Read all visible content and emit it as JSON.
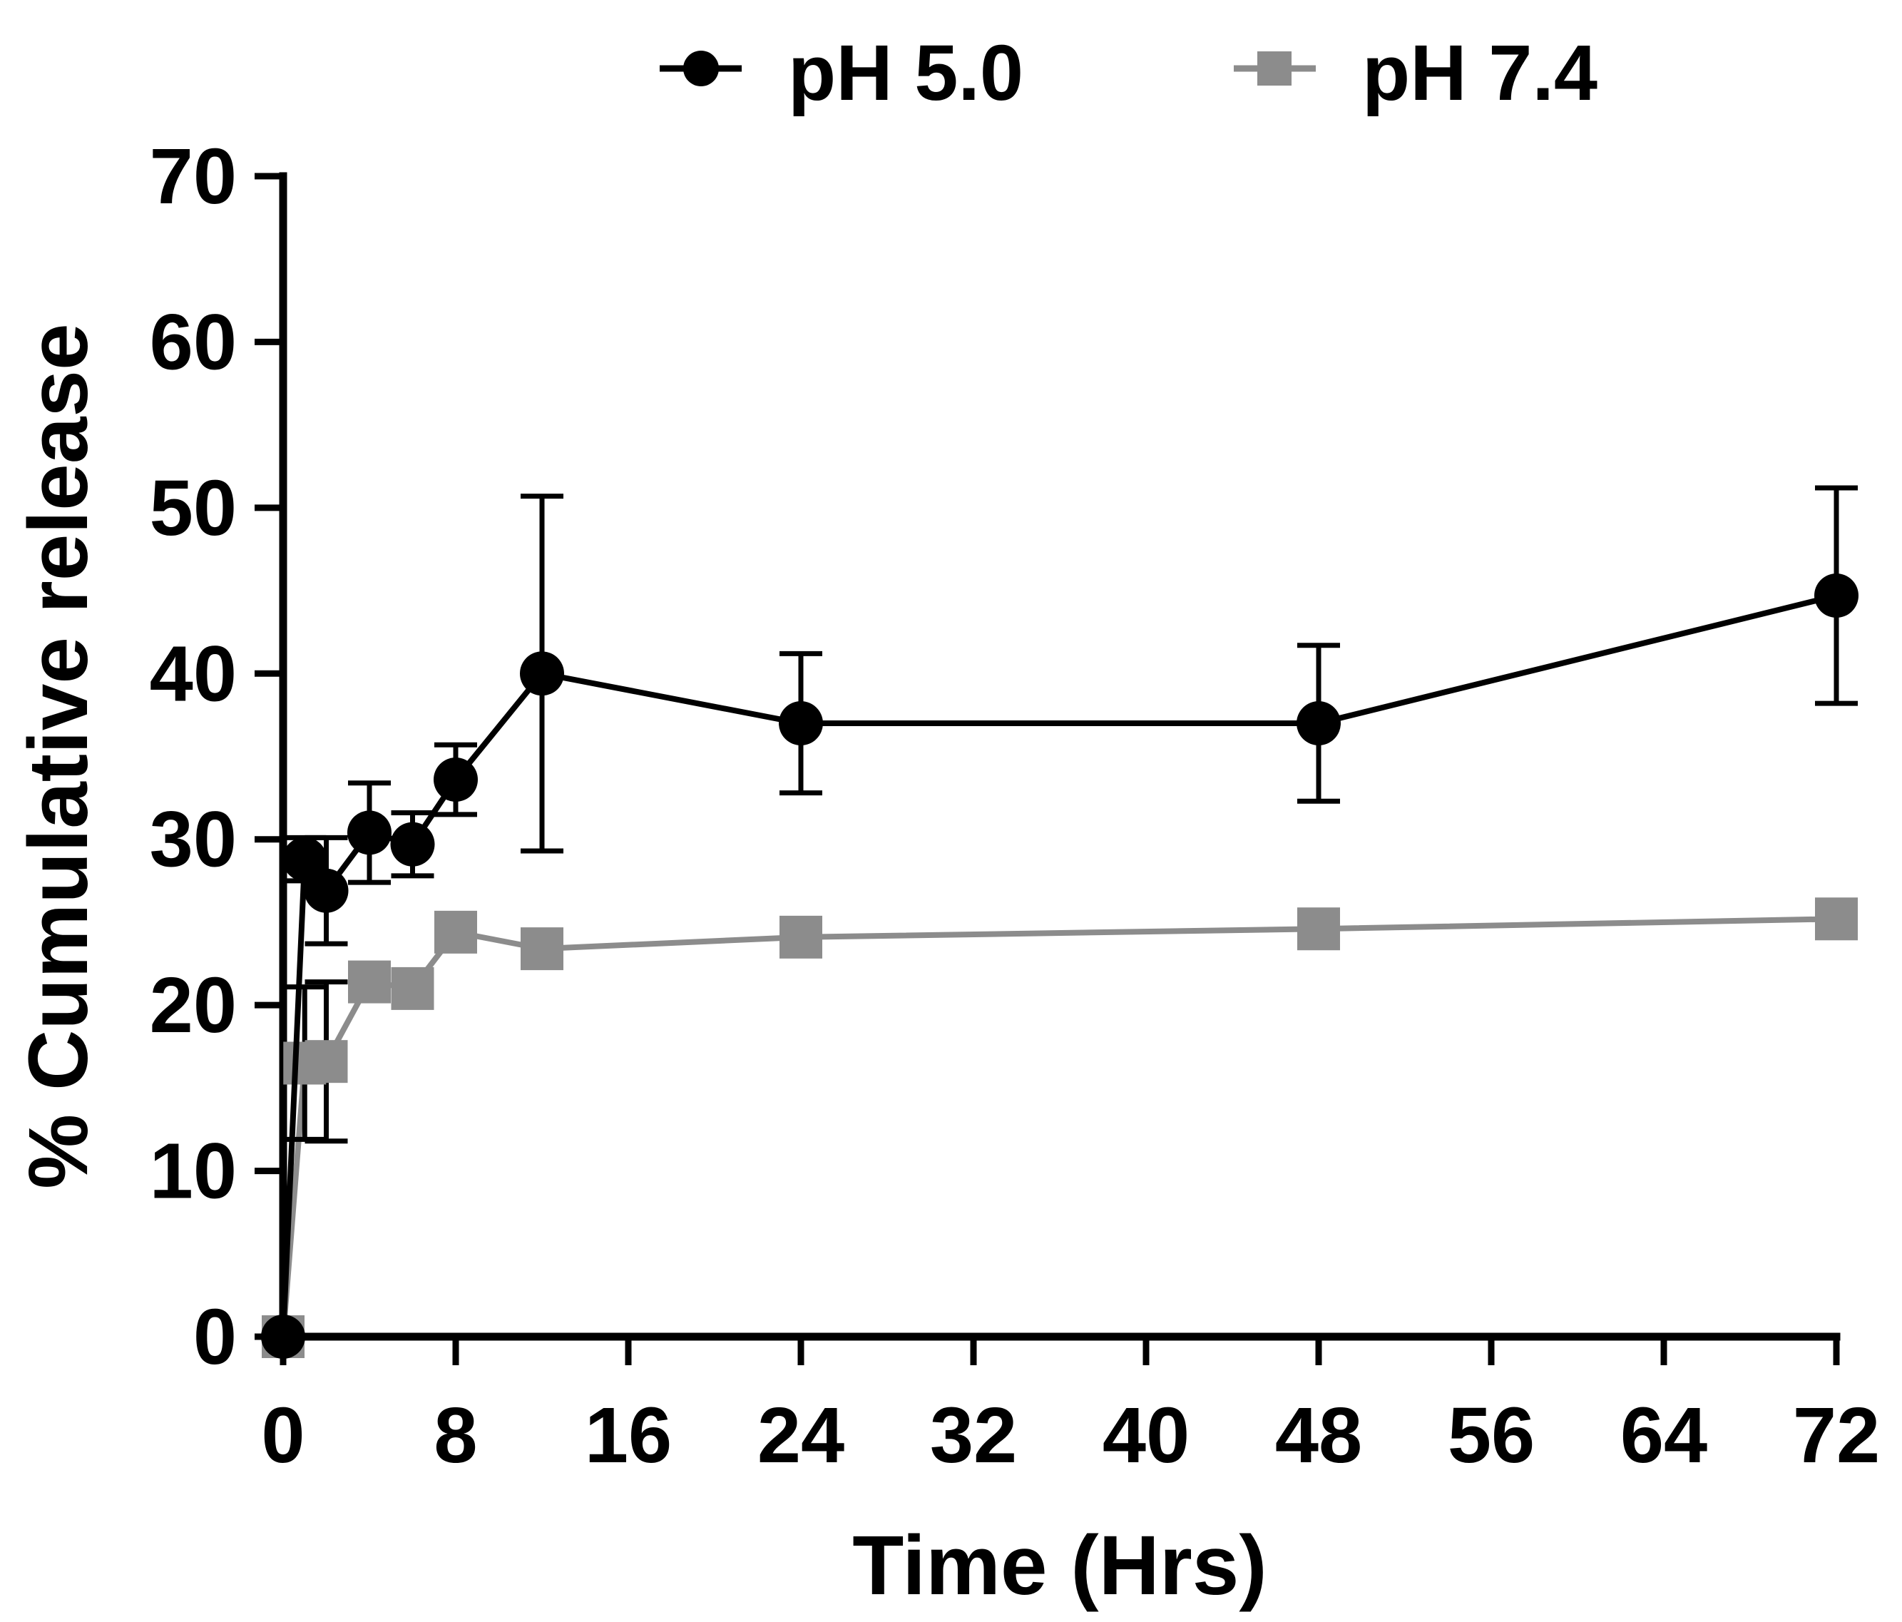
{
  "chart_data": {
    "type": "line",
    "title": "",
    "xlabel": "Time (Hrs)",
    "ylabel": "% Cumulative release",
    "xlim": [
      0,
      72
    ],
    "ylim": [
      0,
      70
    ],
    "x_ticks": [
      0,
      8,
      16,
      24,
      32,
      40,
      48,
      56,
      64,
      72
    ],
    "x_tick_labels": [
      "0",
      "8",
      "16",
      "24",
      "32",
      "40",
      "48",
      "56",
      "64",
      "72"
    ],
    "y_ticks": [
      0,
      10,
      20,
      30,
      40,
      50,
      60,
      70
    ],
    "y_tick_labels": [
      "0",
      "10",
      "20",
      "30",
      "40",
      "50",
      "60",
      "70"
    ],
    "grid": false,
    "legend_position": "top",
    "series": [
      {
        "name": "pH 5.0",
        "color": "#000000",
        "marker": "circle",
        "x": [
          0,
          1,
          2,
          4,
          6,
          8,
          12,
          24,
          48,
          72
        ],
        "y": [
          0,
          28.8,
          26.9,
          30.4,
          29.7,
          33.6,
          40.0,
          37.0,
          37.0,
          44.7
        ],
        "err": [
          0,
          1.3,
          3.2,
          3.0,
          1.9,
          2.1,
          10.7,
          4.2,
          4.7,
          6.5
        ]
      },
      {
        "name": "pH 7.4",
        "color": "#8c8c8c",
        "marker": "square",
        "x": [
          0,
          1,
          2,
          4,
          6,
          8,
          12,
          24,
          48,
          72
        ],
        "y": [
          0,
          16.5,
          16.6,
          21.4,
          21.0,
          24.4,
          23.4,
          24.1,
          24.6,
          25.2
        ],
        "err": [
          0,
          4.6,
          4.8,
          0,
          0,
          0,
          0,
          0,
          0,
          0
        ]
      }
    ]
  }
}
